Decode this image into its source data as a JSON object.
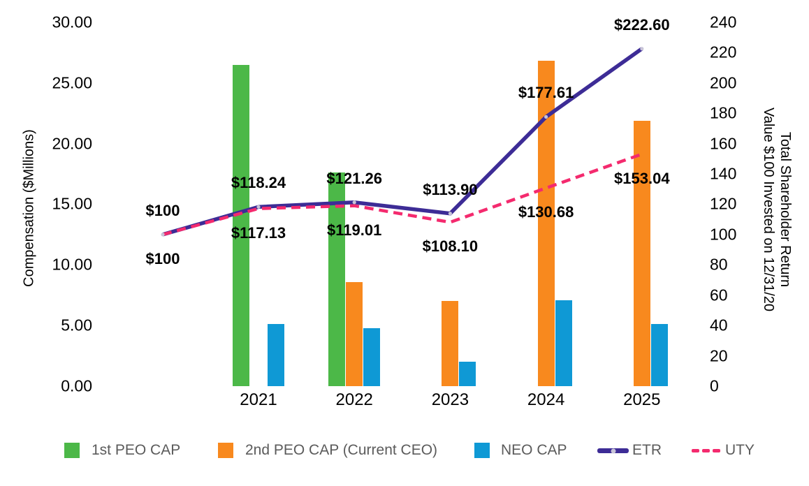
{
  "chart_data": {
    "type": "combo-bar-line",
    "title": "",
    "categories": [
      "2021",
      "2022",
      "2023",
      "2024",
      "2025"
    ],
    "bar_series": [
      {
        "name": "1st PEO CAP",
        "color": "#4CB848",
        "values": [
          26.5,
          17.6,
          null,
          null,
          null
        ]
      },
      {
        "name": "2nd PEO CAP (Current CEO)",
        "color": "#F8891E",
        "values": [
          null,
          8.6,
          7.0,
          26.8,
          21.9
        ]
      },
      {
        "name": "NEO CAP",
        "color": "#0F99D5",
        "values": [
          5.1,
          4.8,
          2.0,
          7.1,
          5.1
        ]
      }
    ],
    "line_series": [
      {
        "name": "ETR",
        "color": "#3D2C96",
        "dashed": false,
        "marker_color": "#C8C4D8",
        "values": [
          100,
          118.24,
          121.26,
          113.9,
          177.61,
          222.6
        ],
        "point_labels": [
          "$100",
          "$118.24",
          "$121.26",
          "$113.90",
          "$177.61",
          "$222.60"
        ]
      },
      {
        "name": "UTY",
        "color": "#F42A6E",
        "dashed": true,
        "values": [
          100,
          117.13,
          119.01,
          108.1,
          130.68,
          153.04
        ],
        "point_labels": [
          "$100",
          "$117.13",
          "$119.01",
          "$108.10",
          "$130.68",
          "$153.04"
        ]
      }
    ],
    "left_axis": {
      "title": "Compensation ($Millions)",
      "min": 0,
      "max": 30,
      "ticks": [
        "30.00",
        "25.00",
        "20.00",
        "15.00",
        "10.00",
        "5.00",
        "0.00"
      ]
    },
    "right_axis": {
      "title_lines": [
        "Total Shareholder Return",
        "Value $100 Invested on 12/31/20"
      ],
      "min": 0,
      "max": 240,
      "ticks": [
        "240",
        "220",
        "200",
        "180",
        "160",
        "140",
        "120",
        "100",
        "80",
        "60",
        "40",
        "20",
        "0"
      ]
    },
    "legend": [
      {
        "label": "1st PEO CAP",
        "type": "square",
        "color": "#4CB848"
      },
      {
        "label": "2nd PEO CAP (Current CEO)",
        "type": "square",
        "color": "#F8891E"
      },
      {
        "label": "NEO CAP",
        "type": "square",
        "color": "#0F99D5"
      },
      {
        "label": "ETR",
        "type": "line-dot",
        "color": "#3D2C96",
        "dot_color": "#C8C4D8"
      },
      {
        "label": "UTY",
        "type": "dashed-line",
        "color": "#F42A6E"
      }
    ],
    "grid": false,
    "legend_position": "bottom",
    "background": "#FFFFFF"
  }
}
